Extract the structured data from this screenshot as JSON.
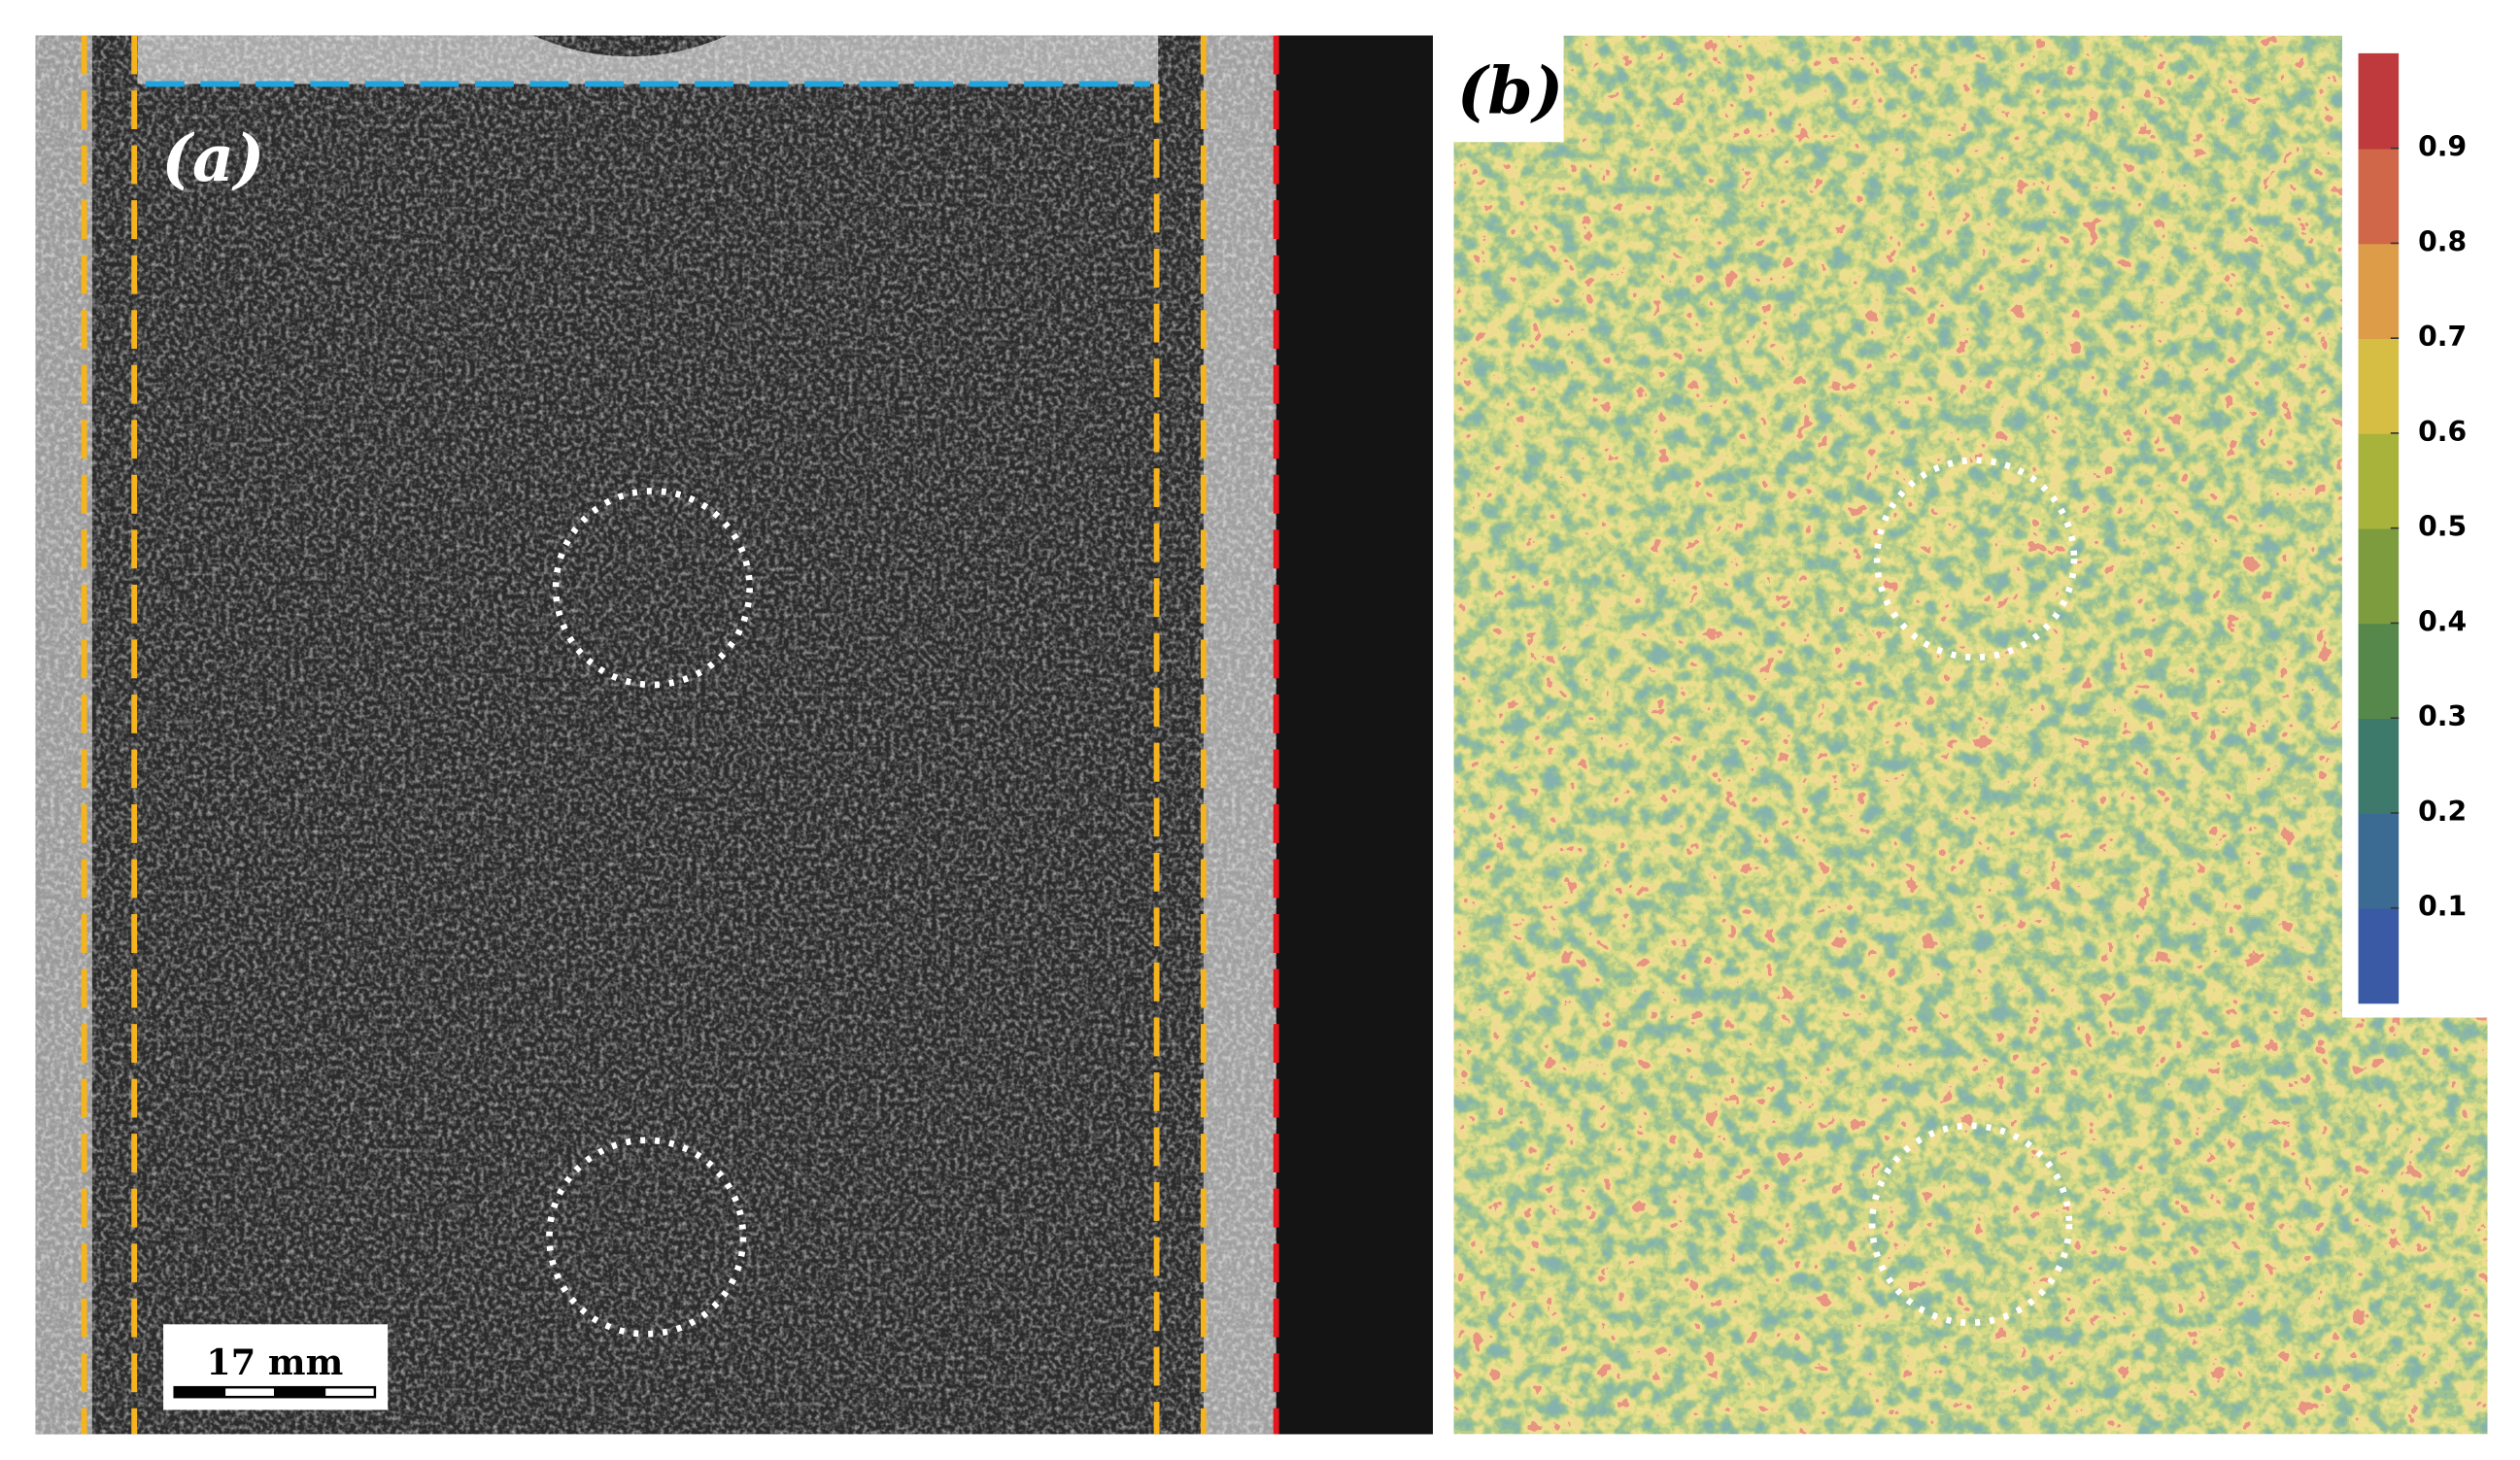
{
  "panels": {
    "a": {
      "label": "(a)"
    },
    "b": {
      "label": "(b)"
    }
  },
  "scale_bar": {
    "label": "17 mm"
  },
  "colorbar": {
    "lim": [
      0,
      1
    ],
    "ticks": [
      0.1,
      0.2,
      0.3,
      0.4,
      0.5,
      0.6,
      0.7,
      0.8,
      0.9
    ],
    "colors": [
      "#3a5aa6",
      "#3b6b92",
      "#3e7a6c",
      "#55884a",
      "#7d9c3e",
      "#a8b33c",
      "#d6bd44",
      "#dd9c48",
      "#cf6748",
      "#bf3a3c"
    ]
  }
}
